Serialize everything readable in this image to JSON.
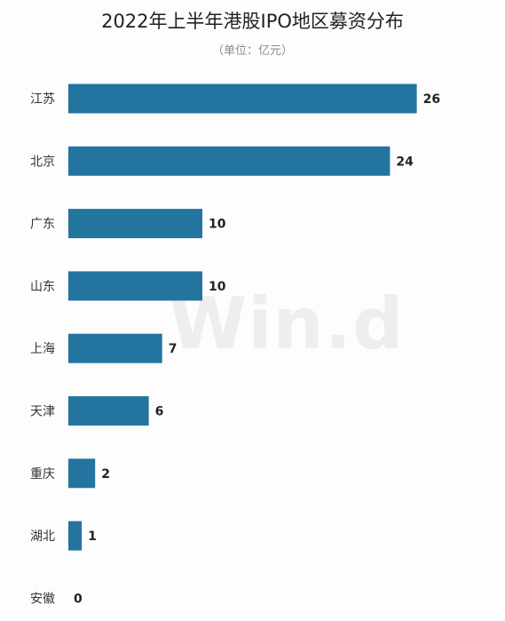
{
  "watermark": "Win.d",
  "chart_data": {
    "type": "bar",
    "orientation": "horizontal",
    "title": "2022年上半年港股IPO地区募资分布",
    "subtitle": "（单位：亿元）",
    "categories": [
      "江苏",
      "北京",
      "广东",
      "山东",
      "上海",
      "天津",
      "重庆",
      "湖北",
      "安徽"
    ],
    "values": [
      26,
      24,
      10,
      10,
      7,
      6,
      2,
      1,
      0
    ],
    "data_labels": [
      "26",
      "24",
      "10",
      "10",
      "7",
      "6",
      "2",
      "1",
      "0"
    ],
    "xlim": [
      0,
      26
    ],
    "grid": false,
    "legend": "none",
    "bar_color": "#2474a0"
  }
}
